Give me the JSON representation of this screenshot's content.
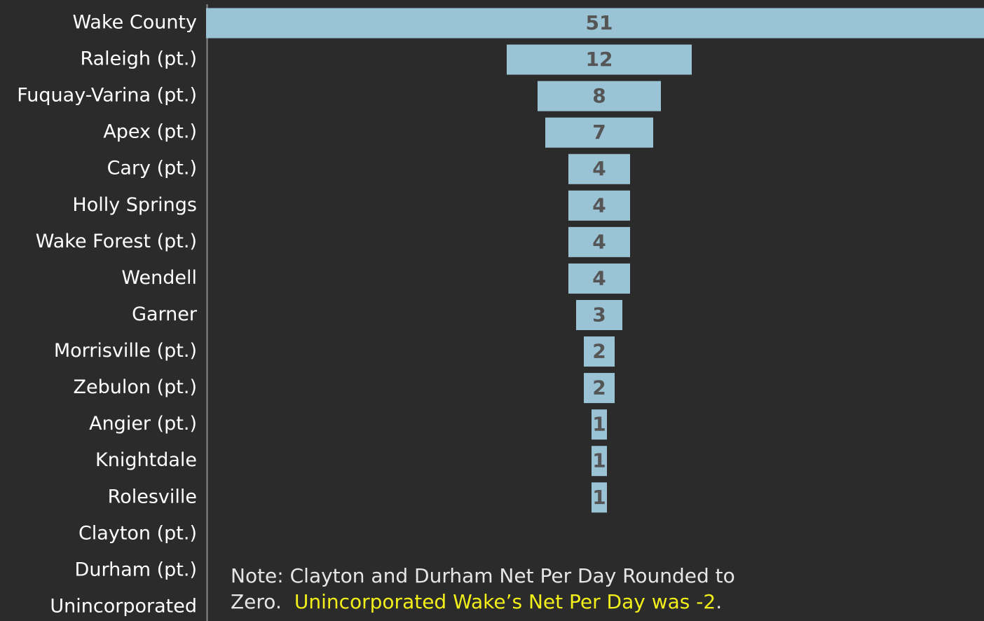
{
  "chart_data": {
    "type": "funnel",
    "categories": [
      "Wake County",
      "Raleigh (pt.)",
      "Fuquay-Varina (pt.)",
      "Apex (pt.)",
      "Cary (pt.)",
      "Holly Springs",
      "Wake Forest (pt.)",
      "Wendell",
      "Garner",
      "Morrisville (pt.)",
      "Zebulon (pt.)",
      "Angier (pt.)",
      "Knightdale",
      "Rolesville",
      "Clayton (pt.)",
      "Durham (pt.)",
      "Unincorporated"
    ],
    "values": [
      51,
      12,
      8,
      7,
      4,
      4,
      4,
      4,
      3,
      2,
      2,
      1,
      1,
      1,
      0,
      0,
      null
    ],
    "color": "#9ac3d6",
    "annotation": [
      "Note: Clayton and Durham Net Per Day Rounded to",
      "Zero.",
      "Unincorporated Wake’s Net Per Day was -2",
      "."
    ]
  }
}
